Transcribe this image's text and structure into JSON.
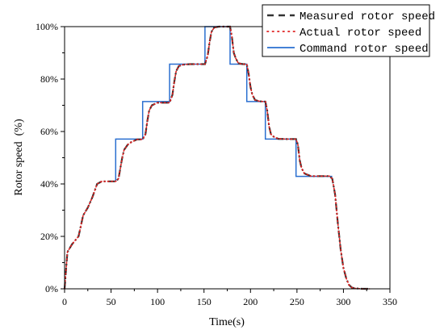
{
  "chart_data": {
    "type": "line",
    "xlabel": "Time(s)",
    "ylabel": "Rotor speed  (%)",
    "xlim": [
      0,
      350
    ],
    "ylim": [
      0,
      100
    ],
    "xticks": [
      0,
      50,
      100,
      150,
      200,
      250,
      300,
      350
    ],
    "yticks": [
      0,
      20,
      40,
      60,
      80,
      100
    ],
    "xtick_labels": [
      "0",
      "50",
      "100",
      "150",
      "200",
      "250",
      "300",
      "350"
    ],
    "ytick_labels": [
      "0%",
      "20%",
      "40%",
      "60%",
      "80%",
      "100%"
    ],
    "grid": false,
    "legend_position": "top-right",
    "series": [
      {
        "name": "Measured rotor speed",
        "color": "#333333",
        "style": "dash-dot",
        "x": [
          0,
          3,
          8,
          15,
          20,
          25,
          30,
          35,
          40,
          48,
          55,
          58,
          60,
          62,
          64,
          68,
          72,
          78,
          84,
          87,
          89,
          91,
          94,
          100,
          108,
          113,
          116,
          118,
          120,
          123,
          128,
          135,
          142,
          151,
          154,
          156,
          158,
          161,
          166,
          172,
          178,
          180,
          182,
          184,
          187,
          192,
          196,
          198,
          200,
          202,
          205,
          210,
          216,
          218,
          220,
          222,
          225,
          230,
          240,
          249,
          251,
          253,
          255,
          258,
          265,
          275,
          285,
          288,
          291,
          294,
          297,
          300,
          303,
          306,
          309,
          312,
          320,
          328
        ],
        "values": [
          0,
          14,
          17,
          20,
          28,
          31,
          35,
          40,
          41,
          41,
          41,
          42,
          46,
          50,
          53,
          55,
          56,
          57,
          57,
          59,
          64,
          68,
          70,
          71,
          71,
          71,
          74,
          79,
          83,
          85,
          85.5,
          85.7,
          85.7,
          85.7,
          89,
          94,
          98,
          99.7,
          100,
          100,
          100,
          96,
          90,
          88,
          86,
          85.7,
          85.7,
          82,
          77,
          74,
          72,
          71.5,
          71.4,
          68,
          62,
          59,
          58,
          57.2,
          57.1,
          57.1,
          55,
          49,
          46,
          44,
          43,
          43,
          43,
          42,
          36,
          25,
          15,
          8,
          4,
          1.5,
          0.5,
          0.2,
          0,
          0
        ]
      },
      {
        "name": "Actual rotor speed",
        "color": "#e02020",
        "style": "dotted",
        "x": [
          0,
          3,
          8,
          15,
          20,
          25,
          30,
          35,
          40,
          48,
          55,
          58,
          60,
          62,
          64,
          68,
          72,
          78,
          84,
          87,
          89,
          91,
          94,
          100,
          108,
          113,
          116,
          118,
          120,
          123,
          128,
          135,
          142,
          151,
          154,
          156,
          158,
          161,
          166,
          172,
          178,
          180,
          182,
          184,
          187,
          192,
          196,
          198,
          200,
          202,
          205,
          210,
          216,
          218,
          220,
          222,
          225,
          230,
          240,
          249,
          251,
          253,
          255,
          258,
          265,
          275,
          285,
          288,
          291,
          294,
          297,
          300,
          303,
          306,
          309,
          312,
          320,
          328
        ],
        "values": [
          0,
          14,
          17,
          20,
          28,
          31,
          35,
          40,
          41,
          41,
          41,
          42,
          46,
          50,
          53,
          55,
          56,
          57,
          57,
          59,
          64,
          68,
          70,
          71,
          71,
          71,
          74,
          79,
          83,
          85,
          85.5,
          85.7,
          85.7,
          85.7,
          89,
          94,
          98,
          99.7,
          100,
          100,
          100,
          96,
          90,
          88,
          86,
          85.7,
          85.7,
          82,
          77,
          74,
          72,
          71.5,
          71.4,
          68,
          62,
          59,
          58,
          57.2,
          57.1,
          57.1,
          55,
          49,
          46,
          44,
          43,
          43,
          43,
          42,
          36,
          25,
          15,
          8,
          4,
          1.5,
          0.5,
          0.2,
          0,
          0
        ]
      },
      {
        "name": "Command rotor speed",
        "color": "#2a6fd0",
        "style": "solid",
        "x": [
          55,
          55,
          84,
          84,
          113,
          113,
          151,
          151,
          178,
          178,
          196,
          196,
          216,
          216,
          249,
          249,
          288
        ],
        "values": [
          41,
          57.1,
          57.1,
          71.4,
          71.4,
          85.7,
          85.7,
          100,
          100,
          85.7,
          85.7,
          71.4,
          71.4,
          57.1,
          57.1,
          42.9,
          42.9
        ]
      }
    ]
  }
}
